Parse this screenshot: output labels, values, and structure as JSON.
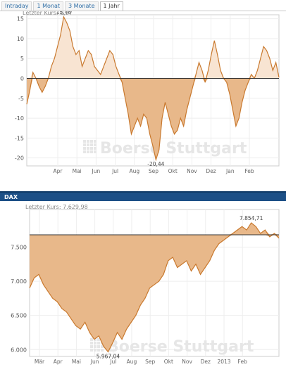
{
  "tabs": [
    "Intraday",
    "1 Monat",
    "3 Monate",
    "1 Jahr"
  ],
  "active_tab": 3,
  "watermark": "Boerse Stuttgart",
  "colors": {
    "fill": "#e8b88a",
    "fill_light": "#f8e4d2",
    "line": "#c9792e",
    "baseline": "#333333",
    "header": "#1c4f86"
  },
  "chart_data": [
    {
      "type": "area",
      "subtitle": "Letzter Kurs: 0,27",
      "xticks": [
        "Apr",
        "Mai",
        "Jun",
        "Jul",
        "Aug",
        "Sep",
        "Okt",
        "Nov",
        "Dez",
        "Jan",
        "Feb"
      ],
      "ylim": [
        -22,
        16
      ],
      "yticks": [
        15,
        10,
        5,
        0,
        -5,
        -10,
        -15,
        -20
      ],
      "grid": true,
      "baseline": 0,
      "series": [
        {
          "values": [
            -6.5,
            -3,
            1.5,
            0,
            -2,
            -3.5,
            -2,
            0,
            3,
            5,
            8,
            11,
            15.48,
            14,
            12,
            8,
            6,
            7,
            3,
            5,
            7,
            6,
            3,
            2,
            1,
            3,
            5,
            7,
            6,
            3,
            1,
            -1,
            -5,
            -9,
            -14,
            -12,
            -10,
            -12,
            -9,
            -10,
            -14,
            -17,
            -20.44,
            -18,
            -10,
            -6,
            -9,
            -12,
            -14,
            -13,
            -10,
            -12,
            -8,
            -5,
            -2,
            1,
            4,
            2,
            -1,
            2,
            6,
            9.5,
            6,
            2,
            0,
            -1,
            -4,
            -8,
            -12,
            -10,
            -6,
            -3,
            -1,
            1,
            0,
            2,
            5,
            8,
            7,
            5,
            2,
            4,
            0.27
          ]
        }
      ],
      "annotations": [
        {
          "label": "15,48",
          "value": 15.48
        },
        {
          "label": "-20,44",
          "value": -20.44
        }
      ]
    },
    {
      "type": "area",
      "title": "DAX",
      "subtitle": "Letzter Kurs: 7.629,98",
      "xticks": [
        "Mär",
        "Apr",
        "Mai",
        "Jun",
        "Jul",
        "Aug",
        "Sep",
        "Okt",
        "Nov",
        "Dez",
        "2013",
        "Feb"
      ],
      "ylim": [
        5900,
        8050
      ],
      "yticks": [
        "7.500",
        "7.000",
        "6.500",
        "6.000"
      ],
      "ytick_values": [
        7500,
        7000,
        6500,
        6000
      ],
      "grid": true,
      "baseline": 7680,
      "series": [
        {
          "values": [
            6900,
            7050,
            7100,
            6950,
            6850,
            6750,
            6700,
            6600,
            6550,
            6450,
            6350,
            6300,
            6400,
            6250,
            6150,
            6200,
            6050,
            5967.04,
            6100,
            6250,
            6150,
            6300,
            6400,
            6500,
            6650,
            6750,
            6900,
            6950,
            7000,
            7100,
            7300,
            7350,
            7200,
            7250,
            7300,
            7150,
            7250,
            7100,
            7200,
            7300,
            7450,
            7550,
            7600,
            7650,
            7700,
            7750,
            7800,
            7750,
            7854.71,
            7800,
            7700,
            7750,
            7650,
            7700,
            7630
          ]
        }
      ],
      "annotations": [
        {
          "label": "7.854,71",
          "value": 7854.71
        },
        {
          "label": "5.967,04",
          "value": 5967.04
        }
      ]
    }
  ]
}
